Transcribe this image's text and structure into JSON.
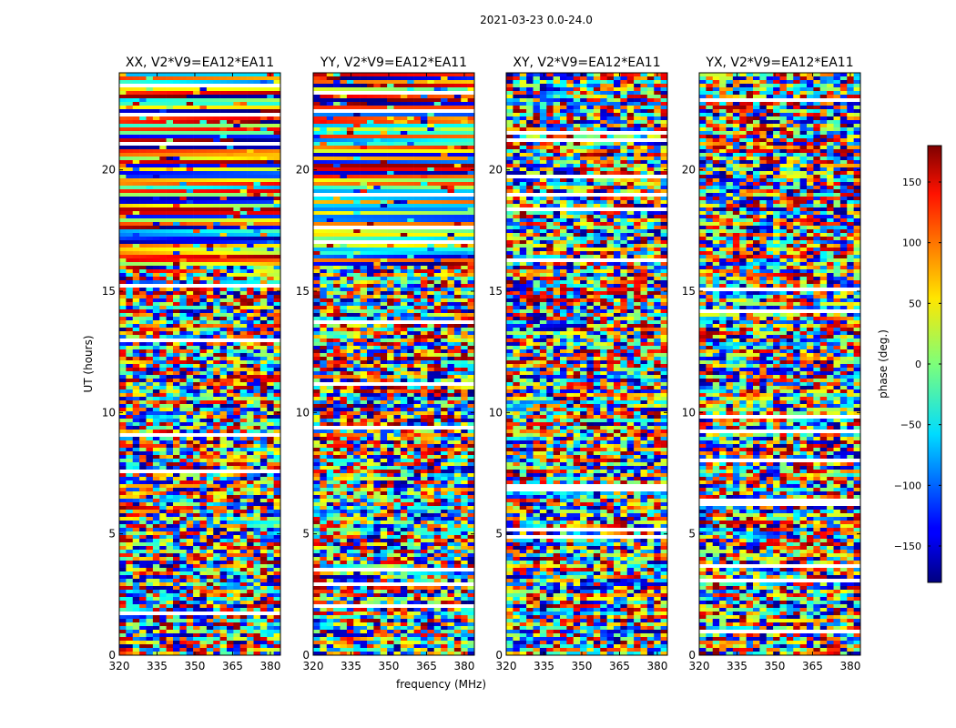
{
  "suptitle": "2021-03-23 0.0-24.0",
  "chart_data": [
    {
      "type": "heatmap",
      "title": "XX, V2*V9=EA12*EA11",
      "xlabel": "",
      "ylabel": "UT (hours)",
      "xlim": [
        320,
        384
      ],
      "ylim": [
        0,
        24
      ],
      "xticks": [
        320,
        335,
        350,
        365,
        380
      ],
      "yticks": [
        0,
        5,
        10,
        15,
        20
      ],
      "z_range": [
        -180,
        180
      ],
      "z_label": "phase (deg.)"
    },
    {
      "type": "heatmap",
      "title": "YY, V2*V9=EA12*EA11",
      "xlabel": "frequency (MHz)",
      "ylabel": "",
      "xlim": [
        320,
        384
      ],
      "ylim": [
        0,
        24
      ],
      "xticks": [
        320,
        335,
        350,
        365,
        380
      ],
      "yticks": [
        0,
        5,
        10,
        15,
        20
      ],
      "z_range": [
        -180,
        180
      ],
      "z_label": "phase (deg.)"
    },
    {
      "type": "heatmap",
      "title": "XY, V2*V9=EA12*EA11",
      "xlabel": "",
      "ylabel": "",
      "xlim": [
        320,
        384
      ],
      "ylim": [
        0,
        24
      ],
      "xticks": [
        320,
        335,
        350,
        365,
        380
      ],
      "yticks": [
        0,
        5,
        10,
        15,
        20
      ],
      "z_range": [
        -180,
        180
      ],
      "z_label": "phase (deg.)"
    },
    {
      "type": "heatmap",
      "title": "YX, V2*V9=EA12*EA11",
      "xlabel": "",
      "ylabel": "",
      "xlim": [
        320,
        384
      ],
      "ylim": [
        0,
        24
      ],
      "xticks": [
        320,
        335,
        350,
        365,
        380
      ],
      "yticks": [
        0,
        5,
        10,
        15,
        20
      ],
      "z_range": [
        -180,
        180
      ],
      "z_label": "phase (deg.)"
    }
  ],
  "colorbar": {
    "label": "phase (deg.)",
    "range": [
      -180,
      180
    ],
    "ticks": [
      150,
      100,
      50,
      0,
      -50,
      -100,
      -150
    ],
    "tick_labels": [
      "150",
      "100",
      "50",
      "0",
      "−50",
      "−100",
      "−150"
    ],
    "colormap": "jet"
  }
}
